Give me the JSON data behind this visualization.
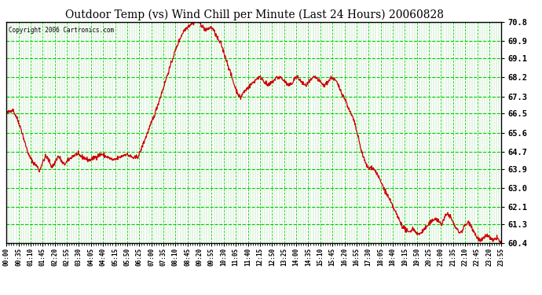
{
  "title": "Outdoor Temp (vs) Wind Chill per Minute (Last 24 Hours) 20060828",
  "copyright": "Copyright 2006 Cartronics.com",
  "bg_color": "#ffffff",
  "plot_bg_color": "#ffffff",
  "line_color": "#cc0000",
  "grid_major_color": "#00cc00",
  "grid_minor_color": "#009900",
  "ylim": [
    60.4,
    70.8
  ],
  "yticks": [
    60.4,
    61.3,
    62.1,
    63.0,
    63.9,
    64.7,
    65.6,
    66.5,
    67.3,
    68.2,
    69.1,
    69.9,
    70.8
  ],
  "xtick_labels": [
    "00:00",
    "00:35",
    "01:10",
    "01:45",
    "02:20",
    "02:55",
    "03:30",
    "04:05",
    "04:40",
    "05:15",
    "05:50",
    "06:25",
    "07:00",
    "07:35",
    "08:10",
    "08:45",
    "09:20",
    "09:55",
    "10:30",
    "11:05",
    "11:40",
    "12:15",
    "12:50",
    "13:25",
    "14:00",
    "14:35",
    "15:10",
    "15:45",
    "16:20",
    "16:55",
    "17:30",
    "18:05",
    "18:40",
    "19:15",
    "19:50",
    "20:25",
    "21:00",
    "21:35",
    "22:10",
    "22:45",
    "23:20",
    "23:55"
  ],
  "ctrl_points": [
    [
      0.0,
      66.5
    ],
    [
      0.3,
      66.7
    ],
    [
      0.5,
      66.3
    ],
    [
      0.7,
      65.8
    ],
    [
      0.9,
      65.1
    ],
    [
      1.1,
      64.5
    ],
    [
      1.3,
      64.2
    ],
    [
      1.5,
      64.0
    ],
    [
      1.6,
      63.8
    ],
    [
      1.7,
      64.1
    ],
    [
      1.8,
      64.3
    ],
    [
      1.9,
      64.5
    ],
    [
      2.0,
      64.4
    ],
    [
      2.1,
      64.2
    ],
    [
      2.2,
      64.0
    ],
    [
      2.3,
      64.1
    ],
    [
      2.4,
      64.3
    ],
    [
      2.5,
      64.5
    ],
    [
      2.6,
      64.4
    ],
    [
      2.7,
      64.2
    ],
    [
      2.8,
      64.1
    ],
    [
      3.0,
      64.3
    ],
    [
      3.2,
      64.5
    ],
    [
      3.4,
      64.6
    ],
    [
      3.6,
      64.5
    ],
    [
      3.8,
      64.4
    ],
    [
      4.0,
      64.3
    ],
    [
      4.2,
      64.4
    ],
    [
      4.4,
      64.5
    ],
    [
      4.6,
      64.6
    ],
    [
      4.8,
      64.5
    ],
    [
      5.0,
      64.4
    ],
    [
      5.2,
      64.3
    ],
    [
      5.4,
      64.4
    ],
    [
      5.6,
      64.5
    ],
    [
      5.8,
      64.6
    ],
    [
      6.0,
      64.5
    ],
    [
      6.2,
      64.4
    ],
    [
      6.4,
      64.5
    ],
    [
      6.6,
      65.0
    ],
    [
      6.8,
      65.5
    ],
    [
      7.0,
      66.0
    ],
    [
      7.2,
      66.5
    ],
    [
      7.4,
      67.1
    ],
    [
      7.6,
      67.7
    ],
    [
      7.8,
      68.3
    ],
    [
      8.0,
      68.9
    ],
    [
      8.2,
      69.5
    ],
    [
      8.4,
      70.0
    ],
    [
      8.6,
      70.4
    ],
    [
      8.8,
      70.6
    ],
    [
      9.0,
      70.75
    ],
    [
      9.1,
      70.8
    ],
    [
      9.2,
      70.8
    ],
    [
      9.3,
      70.8
    ],
    [
      9.4,
      70.75
    ],
    [
      9.5,
      70.6
    ],
    [
      9.6,
      70.5
    ],
    [
      9.7,
      70.4
    ],
    [
      9.8,
      70.5
    ],
    [
      9.9,
      70.55
    ],
    [
      10.0,
      70.5
    ],
    [
      10.1,
      70.3
    ],
    [
      10.2,
      70.1
    ],
    [
      10.3,
      69.9
    ],
    [
      10.4,
      69.8
    ],
    [
      10.5,
      69.5
    ],
    [
      10.6,
      69.2
    ],
    [
      10.7,
      68.9
    ],
    [
      10.8,
      68.6
    ],
    [
      10.9,
      68.3
    ],
    [
      11.0,
      68.0
    ],
    [
      11.1,
      67.7
    ],
    [
      11.2,
      67.5
    ],
    [
      11.25,
      67.4
    ],
    [
      11.3,
      67.3
    ],
    [
      11.35,
      67.2
    ],
    [
      11.4,
      67.35
    ],
    [
      11.5,
      67.5
    ],
    [
      11.6,
      67.6
    ],
    [
      11.7,
      67.7
    ],
    [
      11.8,
      67.8
    ],
    [
      11.9,
      67.9
    ],
    [
      12.0,
      68.0
    ],
    [
      12.1,
      68.1
    ],
    [
      12.2,
      68.2
    ],
    [
      12.3,
      68.2
    ],
    [
      12.4,
      68.15
    ],
    [
      12.5,
      68.0
    ],
    [
      12.6,
      67.9
    ],
    [
      12.7,
      67.8
    ],
    [
      12.8,
      67.9
    ],
    [
      12.9,
      68.0
    ],
    [
      13.0,
      68.1
    ],
    [
      13.1,
      68.2
    ],
    [
      13.2,
      68.2
    ],
    [
      13.3,
      68.2
    ],
    [
      13.4,
      68.1
    ],
    [
      13.5,
      68.0
    ],
    [
      13.6,
      67.9
    ],
    [
      13.7,
      67.8
    ],
    [
      13.8,
      67.9
    ],
    [
      13.9,
      68.0
    ],
    [
      14.0,
      68.2
    ],
    [
      14.1,
      68.2
    ],
    [
      14.2,
      68.1
    ],
    [
      14.3,
      68.0
    ],
    [
      14.4,
      67.9
    ],
    [
      14.5,
      67.8
    ],
    [
      14.6,
      67.9
    ],
    [
      14.7,
      68.0
    ],
    [
      14.8,
      68.1
    ],
    [
      14.9,
      68.2
    ],
    [
      15.0,
      68.2
    ],
    [
      15.1,
      68.1
    ],
    [
      15.2,
      68.0
    ],
    [
      15.3,
      67.9
    ],
    [
      15.4,
      67.8
    ],
    [
      15.5,
      67.9
    ],
    [
      15.6,
      68.0
    ],
    [
      15.7,
      68.15
    ],
    [
      15.8,
      68.2
    ],
    [
      15.9,
      68.1
    ],
    [
      16.0,
      68.0
    ],
    [
      16.1,
      67.8
    ],
    [
      16.2,
      67.6
    ],
    [
      16.3,
      67.4
    ],
    [
      16.4,
      67.2
    ],
    [
      16.5,
      67.0
    ],
    [
      16.6,
      66.7
    ],
    [
      16.7,
      66.5
    ],
    [
      16.8,
      66.3
    ],
    [
      16.9,
      66.0
    ],
    [
      17.0,
      65.6
    ],
    [
      17.1,
      65.2
    ],
    [
      17.2,
      64.8
    ],
    [
      17.3,
      64.5
    ],
    [
      17.4,
      64.2
    ],
    [
      17.5,
      64.0
    ],
    [
      17.6,
      63.9
    ],
    [
      17.7,
      64.0
    ],
    [
      17.8,
      63.9
    ],
    [
      17.9,
      63.8
    ],
    [
      18.0,
      63.6
    ],
    [
      18.1,
      63.4
    ],
    [
      18.2,
      63.2
    ],
    [
      18.3,
      63.0
    ],
    [
      18.4,
      62.8
    ],
    [
      18.5,
      62.6
    ],
    [
      18.6,
      62.4
    ],
    [
      18.7,
      62.2
    ],
    [
      18.8,
      62.0
    ],
    [
      18.9,
      61.8
    ],
    [
      19.0,
      61.6
    ],
    [
      19.1,
      61.4
    ],
    [
      19.2,
      61.2
    ],
    [
      19.3,
      61.1
    ],
    [
      19.4,
      61.0
    ],
    [
      19.5,
      60.9
    ],
    [
      19.6,
      61.0
    ],
    [
      19.7,
      61.1
    ],
    [
      19.8,
      61.0
    ],
    [
      19.9,
      60.9
    ],
    [
      20.0,
      60.8
    ],
    [
      20.1,
      60.9
    ],
    [
      20.2,
      61.0
    ],
    [
      20.3,
      61.1
    ],
    [
      20.4,
      61.2
    ],
    [
      20.5,
      61.3
    ],
    [
      20.6,
      61.4
    ],
    [
      20.7,
      61.5
    ],
    [
      20.8,
      61.6
    ],
    [
      20.9,
      61.5
    ],
    [
      21.0,
      61.4
    ],
    [
      21.1,
      61.3
    ],
    [
      21.2,
      61.5
    ],
    [
      21.3,
      61.7
    ],
    [
      21.4,
      61.8
    ],
    [
      21.5,
      61.7
    ],
    [
      21.6,
      61.5
    ],
    [
      21.7,
      61.3
    ],
    [
      21.8,
      61.1
    ],
    [
      21.9,
      61.0
    ],
    [
      22.0,
      60.9
    ],
    [
      22.1,
      61.0
    ],
    [
      22.2,
      61.2
    ],
    [
      22.3,
      61.3
    ],
    [
      22.4,
      61.4
    ],
    [
      22.5,
      61.3
    ],
    [
      22.6,
      61.1
    ],
    [
      22.7,
      60.9
    ],
    [
      22.8,
      60.7
    ],
    [
      22.9,
      60.6
    ],
    [
      23.0,
      60.5
    ],
    [
      23.1,
      60.6
    ],
    [
      23.2,
      60.7
    ],
    [
      23.3,
      60.8
    ],
    [
      23.4,
      60.7
    ],
    [
      23.5,
      60.6
    ],
    [
      23.6,
      60.5
    ],
    [
      23.7,
      60.6
    ],
    [
      23.8,
      60.7
    ],
    [
      23.9,
      60.5
    ],
    [
      24.0,
      60.4
    ]
  ]
}
